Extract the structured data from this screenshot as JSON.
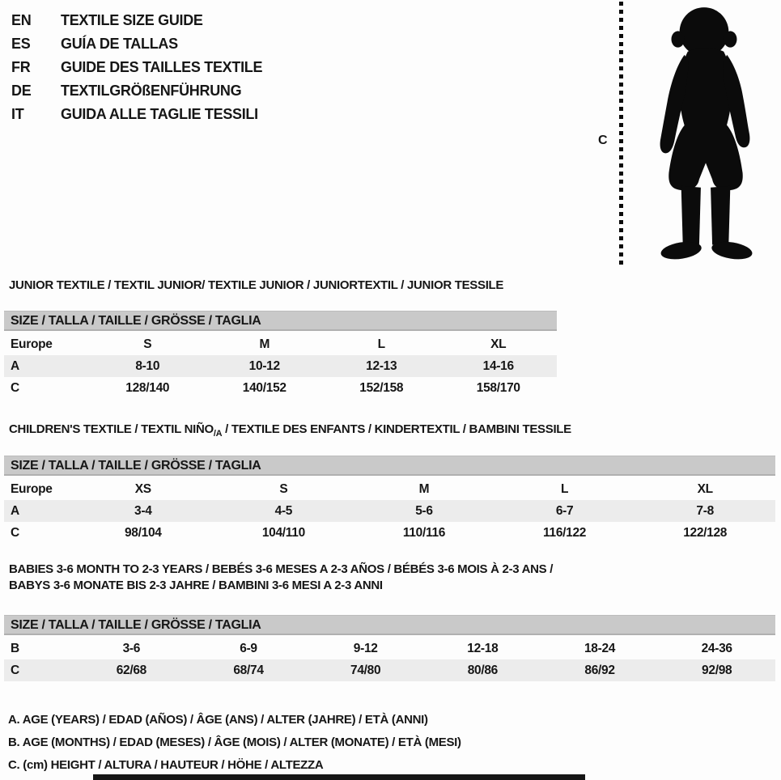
{
  "header": {
    "languages": [
      {
        "code": "EN",
        "label": "TEXTILE SIZE GUIDE"
      },
      {
        "code": "ES",
        "label": "GUÍA DE TALLAS"
      },
      {
        "code": "FR",
        "label": "GUIDE DES TAILLES TEXTILE"
      },
      {
        "code": "DE",
        "label": "TEXTILGRÖßENFÜHRUNG"
      },
      {
        "code": "IT",
        "label": "GUIDA ALLE TAGLIE TESSILI"
      }
    ]
  },
  "figure": {
    "label": "C",
    "image_name": "toddler-silhouette"
  },
  "sections": [
    {
      "id": "junior",
      "title_lines": [
        [
          {
            "text": "JUNIOR TEXTILE / TEXTIL JUNIOR/ TEXTILE JUNIOR / JUNIORTEXTIL / JUNIOR TESSILE",
            "sub": false
          }
        ]
      ],
      "size_bar": "SIZE / TALLA / TAILLE / GRÖSSE / TAGLIA",
      "rows": [
        {
          "label": "Europe",
          "shaded": false,
          "values": [
            "S",
            "M",
            "L",
            "XL"
          ]
        },
        {
          "label": "A",
          "shaded": true,
          "values": [
            "8-10",
            "10-12",
            "12-13",
            "14-16"
          ]
        },
        {
          "label": "C",
          "shaded": false,
          "values": [
            "128/140",
            "140/152",
            "152/158",
            "158/170"
          ]
        }
      ]
    },
    {
      "id": "children",
      "title_lines": [
        [
          {
            "text": "CHILDREN'S TEXTILE / TEXTIL NIÑO",
            "sub": false
          },
          {
            "text": "/A",
            "sub": true
          },
          {
            "text": " / TEXTILE DES ENFANTS / KINDERTEXTIL / BAMBINI TESSILE",
            "sub": false
          }
        ]
      ],
      "size_bar": "SIZE / TALLA / TAILLE / GRÖSSE / TAGLIA",
      "rows": [
        {
          "label": "Europe",
          "shaded": false,
          "values": [
            "XS",
            "S",
            "M",
            "L",
            "XL"
          ]
        },
        {
          "label": "A",
          "shaded": true,
          "values": [
            "3-4",
            "4-5",
            "5-6",
            "6-7",
            "7-8"
          ]
        },
        {
          "label": "C",
          "shaded": false,
          "values": [
            "98/104",
            "104/110",
            "110/116",
            "116/122",
            "122/128"
          ]
        }
      ]
    },
    {
      "id": "babies",
      "title_lines": [
        [
          {
            "text": "BABIES 3-6 MONTH TO 2-3 YEARS / BEBÉS 3-6 MESES A 2-3 AÑOS / BÉBÉS 3-6 MOIS À 2-3 ANS /",
            "sub": false
          }
        ],
        [
          {
            "text": "BABYS 3-6 MONATE BIS 2-3 JAHRE / BAMBINI 3-6 MESI A 2-3 ANNI",
            "sub": false
          }
        ]
      ],
      "size_bar": "SIZE / TALLA / TAILLE / GRÖSSE / TAGLIA",
      "rows": [
        {
          "label": "B",
          "shaded": false,
          "values": [
            "3-6",
            "6-9",
            "9-12",
            "12-18",
            "18-24",
            "24-36"
          ]
        },
        {
          "label": "C",
          "shaded": true,
          "values": [
            "62/68",
            "68/74",
            "74/80",
            "80/86",
            "86/92",
            "92/98"
          ]
        }
      ]
    }
  ],
  "legend": [
    "A. AGE (YEARS) / EDAD (AÑOS) / ÂGE (ANS) / ALTER (JAHRE) / ETÀ (ANNI)",
    "B. AGE (MONTHS) / EDAD (MESES) / ÂGE (MOIS) / ALTER (MONATE) / ETÀ (MESI)",
    "C. (cm) HEIGHT / ALTURA / HAUTEUR / HÖHE / ALTEZZA"
  ],
  "colors": {
    "text": "#161616",
    "size_bar_bg": "#c9c9c9",
    "size_bar_border": "#b0b0b0",
    "shaded_row_bg": "#ececec",
    "page_bg": "#fdfdfd",
    "silhouette": "#0b0b0b"
  }
}
